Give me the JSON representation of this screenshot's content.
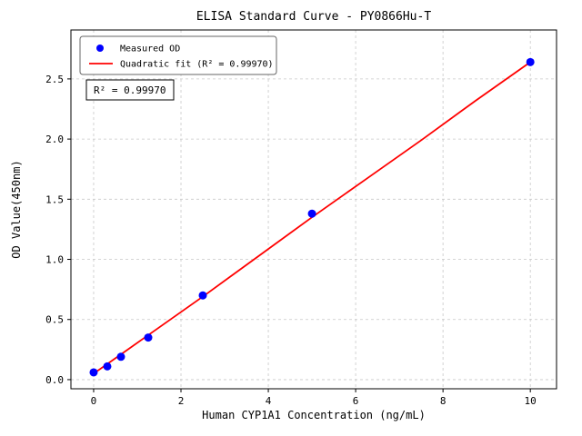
{
  "chart_data": {
    "type": "scatter",
    "title": "ELISA Standard Curve - PY0866Hu-T",
    "xlabel": "Human CYP1A1 Concentration (ng/mL)",
    "ylabel": "OD Value(450nm)",
    "xlim": [
      -0.52,
      10.6
    ],
    "ylim": [
      -0.076,
      2.907
    ],
    "grid": true,
    "grid_style": "dashed",
    "grid_color": "#c8c8c8",
    "background_color": "#ffffff",
    "axis_color": "#000000",
    "xticks": {
      "values": [
        0,
        2,
        4,
        6,
        8,
        10
      ],
      "labels": [
        "0",
        "2",
        "4",
        "6",
        "8",
        "10"
      ]
    },
    "yticks": {
      "values": [
        0.0,
        0.5,
        1.0,
        1.5,
        2.0,
        2.5
      ],
      "labels": [
        "0.0",
        "0.5",
        "1.0",
        "1.5",
        "2.0",
        "2.5"
      ]
    },
    "series": [
      {
        "name": "Measured OD",
        "type": "scatter",
        "color": "#0000ff",
        "marker": "circle",
        "x": [
          0,
          0.3125,
          0.625,
          1.25,
          2.5,
          5,
          10
        ],
        "y": [
          0.06,
          0.11,
          0.19,
          0.35,
          0.7,
          1.38,
          2.64
        ]
      },
      {
        "name": "Quadratic fit (R² = 0.99970)",
        "type": "line",
        "color": "#ff0000",
        "x": [
          0,
          1.25,
          2.5,
          3.75,
          5,
          6.25,
          7.5,
          8.75,
          10
        ],
        "y": [
          0.05,
          0.37,
          0.69,
          1.02,
          1.35,
          1.67,
          1.99,
          2.32,
          2.64
        ]
      }
    ],
    "legend": {
      "position": "upper-left",
      "entries": [
        {
          "label": "Measured OD",
          "marker": "circle",
          "color": "#0000ff"
        },
        {
          "label": "Quadratic fit (R² = 0.99970)",
          "marker": "line",
          "color": "#ff0000"
        }
      ]
    },
    "annotation": {
      "text": "R² = 0.99970"
    }
  }
}
